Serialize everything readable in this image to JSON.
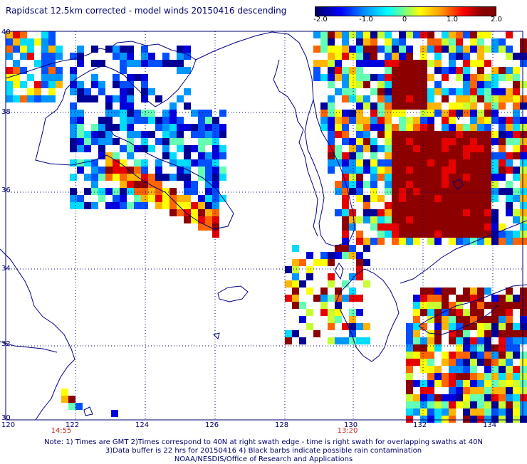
{
  "title": "Rapidscat 12.5km corrected - model winds 20150416 descending",
  "colorbar": {
    "labels": [
      "-2.0",
      "-1.0",
      "0",
      "1.0",
      "2.0"
    ],
    "min": -2.0,
    "max": 2.0
  },
  "map": {
    "lon_range": [
      120,
      135
    ],
    "lat_range": [
      30,
      40
    ],
    "lon_ticks": [
      "120",
      "122",
      "124",
      "126",
      "128",
      "130",
      "132",
      "134"
    ],
    "lat_ticks": [
      "40",
      "38",
      "36",
      "34",
      "32",
      "30"
    ],
    "grid": "dotted",
    "coastline_color": "#000080"
  },
  "times": [
    "14:55",
    "13:20"
  ],
  "notes": {
    "line1": "Note: 1) Times are GMT 2)Times correspond to 40N at right swath edge - time is right swath for overlapping swaths at 40N",
    "line2": "3)Data buffer is 22 hrs for 20150416 4) Black barbs indicate possible rain contamination",
    "line3": "NOAA/NESDIS/Office of Research and Applications"
  },
  "colors": {
    "text": "#00006e",
    "time": "#c8281e",
    "very_low": "#0000c8",
    "low": "#0064ff",
    "mid_low": "#00c8ff",
    "zero": "#00ffc8",
    "mid_high": "#ffff00",
    "high": "#ff9600",
    "very_high": "#ff0000",
    "max": "#8c0000"
  }
}
